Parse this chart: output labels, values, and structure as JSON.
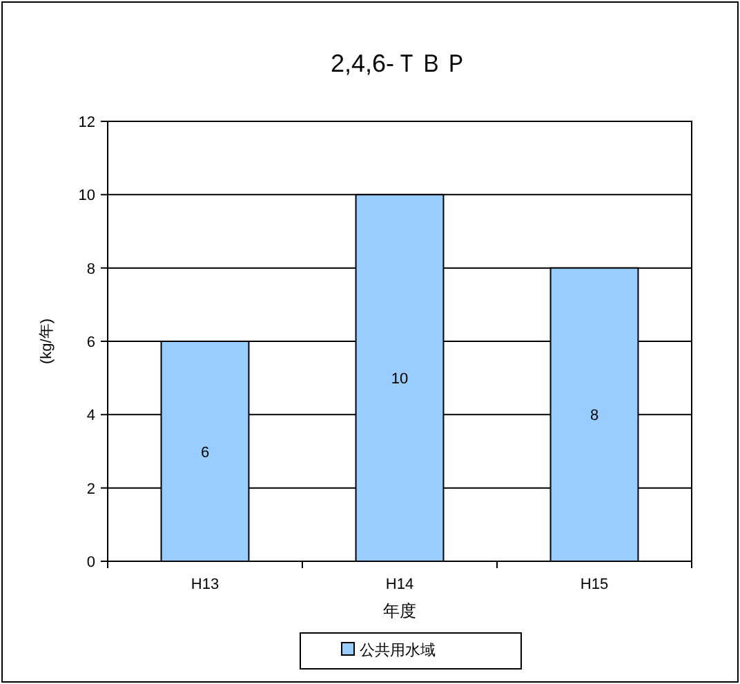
{
  "chart_data": {
    "type": "bar",
    "title": "2,4,6-ＴＢＰ",
    "xlabel": "年度",
    "ylabel": "(kg/年)",
    "categories": [
      "H13",
      "H14",
      "H15"
    ],
    "series": [
      {
        "name": "公共用水域",
        "color": "#99ccff",
        "values": [
          6,
          10,
          8
        ]
      }
    ],
    "ylim": [
      0,
      12
    ],
    "yticks": [
      0,
      2,
      4,
      6,
      8,
      10,
      12
    ],
    "grid": "y",
    "data_labels": true,
    "legend": "bottom"
  }
}
